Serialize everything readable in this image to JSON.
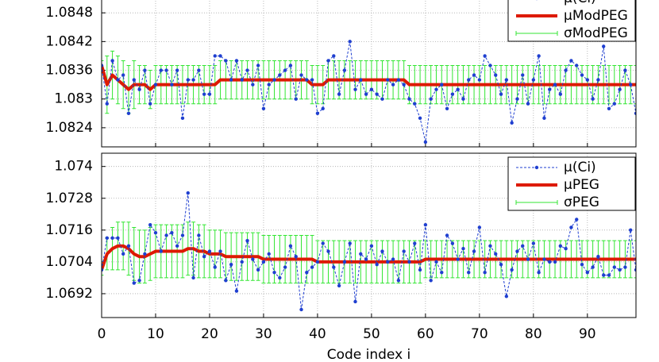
{
  "chart_data": [
    {
      "type": "line",
      "x": [
        0,
        1,
        2,
        3,
        4,
        5,
        6,
        7,
        8,
        9,
        10,
        11,
        12,
        13,
        14,
        15,
        16,
        17,
        18,
        19,
        20,
        21,
        22,
        23,
        24,
        25,
        26,
        27,
        28,
        29,
        30,
        31,
        32,
        33,
        34,
        35,
        36,
        37,
        38,
        39,
        40,
        41,
        42,
        43,
        44,
        45,
        46,
        47,
        48,
        49,
        50,
        51,
        52,
        53,
        54,
        55,
        56,
        57,
        58,
        59,
        60,
        61,
        62,
        63,
        64,
        65,
        66,
        67,
        68,
        69,
        70,
        71,
        72,
        73,
        74,
        75,
        76,
        77,
        78,
        79,
        80,
        81,
        82,
        83,
        84,
        85,
        86,
        87,
        88,
        89,
        90,
        91,
        92,
        93,
        94,
        95,
        96,
        97,
        98,
        99
      ],
      "xlim": [
        0,
        99
      ],
      "xticks": [
        0,
        10,
        20,
        30,
        40,
        50,
        60,
        70,
        80,
        90
      ],
      "ylim": [
        1.082,
        1.0854
      ],
      "yticks": [
        1.0824,
        1.083,
        1.0836,
        1.0842,
        1.0848
      ],
      "grid": true,
      "legend": "upper right",
      "series": [
        {
          "name": "μ(Ci)",
          "color": "#1f3fd0",
          "style": "dashed-points",
          "values": [
            1.0837,
            1.0829,
            1.0838,
            1.0834,
            1.0835,
            1.0827,
            1.0834,
            1.0832,
            1.0836,
            1.0829,
            1.0833,
            1.0836,
            1.0836,
            1.0833,
            1.0836,
            1.0826,
            1.0834,
            1.0834,
            1.0836,
            1.0831,
            1.0831,
            1.0839,
            1.0839,
            1.0838,
            1.0834,
            1.0838,
            1.0834,
            1.0836,
            1.0833,
            1.0837,
            1.0828,
            1.0833,
            1.0834,
            1.0835,
            1.0836,
            1.0837,
            1.083,
            1.0835,
            1.0834,
            1.0834,
            1.0827,
            1.0828,
            1.0838,
            1.0839,
            1.0831,
            1.0836,
            1.0842,
            1.0832,
            1.0834,
            1.0831,
            1.0832,
            1.0831,
            1.083,
            1.0834,
            1.0833,
            1.0834,
            1.0833,
            1.083,
            1.0829,
            1.0826,
            1.0821,
            1.083,
            1.0832,
            1.0833,
            1.0828,
            1.0831,
            1.0832,
            1.083,
            1.0834,
            1.0835,
            1.0834,
            1.0839,
            1.0837,
            1.0835,
            1.0831,
            1.0834,
            1.0825,
            1.083,
            1.0835,
            1.0829,
            1.0834,
            1.0839,
            1.0826,
            1.0832,
            1.0833,
            1.0831,
            1.0836,
            1.0838,
            1.0837,
            1.0835,
            1.0834,
            1.083,
            1.0834,
            1.0841,
            1.0828,
            1.0829,
            1.0832,
            1.0836,
            1.0833,
            1.0827
          ]
        },
        {
          "name": "μModPEG",
          "color": "#dd1a00",
          "style": "thick",
          "values": [
            1.0837,
            1.0833,
            1.0835,
            1.0834,
            1.0833,
            1.0832,
            1.0833,
            1.0833,
            1.0833,
            1.0832,
            1.0833,
            1.0833,
            1.0833,
            1.0833,
            1.0833,
            1.0833,
            1.0833,
            1.0833,
            1.0833,
            1.0833,
            1.0833,
            1.0833,
            1.0834,
            1.0834,
            1.0834,
            1.0834,
            1.0834,
            1.0834,
            1.0834,
            1.0834,
            1.0834,
            1.0834,
            1.0834,
            1.0834,
            1.0834,
            1.0834,
            1.0834,
            1.0834,
            1.0834,
            1.0833,
            1.0833,
            1.0833,
            1.0834,
            1.0834,
            1.0834,
            1.0834,
            1.0834,
            1.0834,
            1.0834,
            1.0834,
            1.0834,
            1.0834,
            1.0834,
            1.0834,
            1.0834,
            1.0834,
            1.0834,
            1.0833,
            1.0833,
            1.0833,
            1.0833,
            1.0833,
            1.0833,
            1.0833,
            1.0833,
            1.0833,
            1.0833,
            1.0833,
            1.0833,
            1.0833,
            1.0833,
            1.0833,
            1.0833,
            1.0833,
            1.0833,
            1.0833,
            1.0833,
            1.0833,
            1.0833,
            1.0833,
            1.0833,
            1.0833,
            1.0833,
            1.0833,
            1.0833,
            1.0833,
            1.0833,
            1.0833,
            1.0833,
            1.0833,
            1.0833,
            1.0833,
            1.0833,
            1.0833,
            1.0833,
            1.0833,
            1.0833,
            1.0833,
            1.0833,
            1.0833
          ]
        },
        {
          "name": "σModPEG",
          "color": "#33e633",
          "style": "errorbar",
          "center": 1,
          "values": [
            0.0001,
            0.0006,
            0.0005,
            0.0005,
            0.0005,
            0.0005,
            0.0005,
            0.0004,
            0.0004,
            0.0004,
            0.0004,
            0.0004,
            0.0004,
            0.0004,
            0.0004,
            0.0004,
            0.0004,
            0.0004,
            0.0004,
            0.0004,
            0.0004,
            0.0004,
            0.0004,
            0.0004,
            0.0004,
            0.0004,
            0.0004,
            0.0004,
            0.0004,
            0.0004,
            0.0004,
            0.0004,
            0.0004,
            0.0004,
            0.0004,
            0.0004,
            0.0004,
            0.0004,
            0.0004,
            0.0004,
            0.0004,
            0.0004,
            0.0004,
            0.0004,
            0.0004,
            0.0004,
            0.0004,
            0.0004,
            0.0004,
            0.0004,
            0.0004,
            0.0004,
            0.0004,
            0.0004,
            0.0004,
            0.0004,
            0.0004,
            0.0004,
            0.0004,
            0.0004,
            0.0004,
            0.0004,
            0.0004,
            0.0004,
            0.0004,
            0.0004,
            0.0004,
            0.0004,
            0.0004,
            0.0004,
            0.0004,
            0.0004,
            0.0004,
            0.0004,
            0.0004,
            0.0004,
            0.0004,
            0.0004,
            0.0004,
            0.0004,
            0.0004,
            0.0004,
            0.0004,
            0.0004,
            0.0004,
            0.0004,
            0.0004,
            0.0004,
            0.0004,
            0.0004,
            0.0004,
            0.0004,
            0.0004,
            0.0004,
            0.0004,
            0.0004,
            0.0004,
            0.0004,
            0.0004,
            0.0004
          ]
        }
      ]
    },
    {
      "type": "line",
      "x": [
        0,
        1,
        2,
        3,
        4,
        5,
        6,
        7,
        8,
        9,
        10,
        11,
        12,
        13,
        14,
        15,
        16,
        17,
        18,
        19,
        20,
        21,
        22,
        23,
        24,
        25,
        26,
        27,
        28,
        29,
        30,
        31,
        32,
        33,
        34,
        35,
        36,
        37,
        38,
        39,
        40,
        41,
        42,
        43,
        44,
        45,
        46,
        47,
        48,
        49,
        50,
        51,
        52,
        53,
        54,
        55,
        56,
        57,
        58,
        59,
        60,
        61,
        62,
        63,
        64,
        65,
        66,
        67,
        68,
        69,
        70,
        71,
        72,
        73,
        74,
        75,
        76,
        77,
        78,
        79,
        80,
        81,
        82,
        83,
        84,
        85,
        86,
        87,
        88,
        89,
        90,
        91,
        92,
        93,
        94,
        95,
        96,
        97,
        98,
        99
      ],
      "xlim": [
        0,
        99
      ],
      "xticks": [
        0,
        10,
        20,
        30,
        40,
        50,
        60,
        70,
        80,
        90
      ],
      "xlabel": "Code index i",
      "ylim": [
        1.0683,
        1.0745
      ],
      "yticks": [
        1.0692,
        1.0704,
        1.0716,
        1.0728,
        1.074
      ],
      "grid": true,
      "legend": "upper right",
      "series": [
        {
          "name": "μ(Ci)",
          "color": "#1f3fd0",
          "style": "dashed-points",
          "values": [
            1.0701,
            1.0713,
            1.0713,
            1.0713,
            1.0707,
            1.071,
            1.0696,
            1.0697,
            1.0707,
            1.0718,
            1.0715,
            1.0708,
            1.0714,
            1.0715,
            1.071,
            1.0714,
            1.073,
            1.0698,
            1.0714,
            1.0706,
            1.0708,
            1.0702,
            1.0708,
            1.0697,
            1.0703,
            1.0693,
            1.0704,
            1.0712,
            1.0705,
            1.0701,
            1.0704,
            1.0707,
            1.07,
            1.0698,
            1.0702,
            1.071,
            1.0706,
            1.0686,
            1.07,
            1.0702,
            1.0704,
            1.0711,
            1.0708,
            1.0702,
            1.0695,
            1.0704,
            1.0711,
            1.0689,
            1.0707,
            1.0705,
            1.071,
            1.0703,
            1.0708,
            1.0704,
            1.0705,
            1.0697,
            1.0708,
            1.0704,
            1.0711,
            1.0701,
            1.0718,
            1.0697,
            1.0704,
            1.07,
            1.0714,
            1.0711,
            1.0705,
            1.0709,
            1.07,
            1.0708,
            1.0717,
            1.07,
            1.071,
            1.0707,
            1.0703,
            1.0691,
            1.0701,
            1.0708,
            1.071,
            1.0705,
            1.0711,
            1.07,
            1.0705,
            1.0704,
            1.0704,
            1.071,
            1.0709,
            1.0717,
            1.072,
            1.0703,
            1.07,
            1.0702,
            1.0706,
            1.0699,
            1.0699,
            1.0702,
            1.0701,
            1.0702,
            1.0716,
            1.0701
          ]
        },
        {
          "name": "μPEG",
          "color": "#dd1a00",
          "style": "thick",
          "values": [
            1.0701,
            1.0707,
            1.0709,
            1.071,
            1.071,
            1.0709,
            1.0707,
            1.0706,
            1.0706,
            1.0707,
            1.0708,
            1.0708,
            1.0708,
            1.0708,
            1.0708,
            1.0708,
            1.0709,
            1.0709,
            1.0708,
            1.0708,
            1.0707,
            1.0707,
            1.0707,
            1.0706,
            1.0706,
            1.0706,
            1.0706,
            1.0706,
            1.0706,
            1.0706,
            1.0705,
            1.0705,
            1.0705,
            1.0705,
            1.0705,
            1.0705,
            1.0705,
            1.0705,
            1.0705,
            1.0705,
            1.0704,
            1.0704,
            1.0704,
            1.0704,
            1.0704,
            1.0704,
            1.0704,
            1.0704,
            1.0704,
            1.0704,
            1.0704,
            1.0704,
            1.0704,
            1.0704,
            1.0704,
            1.0704,
            1.0704,
            1.0704,
            1.0704,
            1.0704,
            1.0705,
            1.0705,
            1.0705,
            1.0705,
            1.0705,
            1.0705,
            1.0705,
            1.0705,
            1.0705,
            1.0705,
            1.0705,
            1.0705,
            1.0705,
            1.0705,
            1.0705,
            1.0705,
            1.0705,
            1.0705,
            1.0705,
            1.0705,
            1.0705,
            1.0705,
            1.0705,
            1.0705,
            1.0705,
            1.0705,
            1.0705,
            1.0705,
            1.0705,
            1.0705,
            1.0705,
            1.0705,
            1.0705,
            1.0705,
            1.0705,
            1.0705,
            1.0705,
            1.0705,
            1.0705,
            1.0705
          ]
        },
        {
          "name": "σPEG",
          "color": "#33e633",
          "style": "errorbar",
          "center": 1,
          "values": [
            0.0002,
            0.0006,
            0.0008,
            0.0009,
            0.0009,
            0.001,
            0.001,
            0.001,
            0.001,
            0.001,
            0.001,
            0.001,
            0.001,
            0.001,
            0.001,
            0.001,
            0.001,
            0.001,
            0.001,
            0.001,
            0.0009,
            0.0009,
            0.0009,
            0.0009,
            0.0009,
            0.0009,
            0.0009,
            0.0009,
            0.0009,
            0.0009,
            0.0009,
            0.0009,
            0.0009,
            0.0009,
            0.0009,
            0.0009,
            0.0009,
            0.0009,
            0.0009,
            0.0009,
            0.0008,
            0.0008,
            0.0008,
            0.0008,
            0.0008,
            0.0008,
            0.0008,
            0.0008,
            0.0008,
            0.0008,
            0.0008,
            0.0008,
            0.0008,
            0.0008,
            0.0008,
            0.0008,
            0.0008,
            0.0008,
            0.0008,
            0.0008,
            0.0007,
            0.0007,
            0.0007,
            0.0007,
            0.0007,
            0.0007,
            0.0007,
            0.0007,
            0.0007,
            0.0007,
            0.0007,
            0.0007,
            0.0007,
            0.0007,
            0.0007,
            0.0007,
            0.0007,
            0.0007,
            0.0007,
            0.0007,
            0.0007,
            0.0007,
            0.0007,
            0.0007,
            0.0007,
            0.0007,
            0.0007,
            0.0007,
            0.0007,
            0.0007,
            0.0007,
            0.0007,
            0.0007,
            0.0007,
            0.0007,
            0.0007,
            0.0007,
            0.0007,
            0.0007,
            0.0007
          ]
        }
      ]
    }
  ]
}
